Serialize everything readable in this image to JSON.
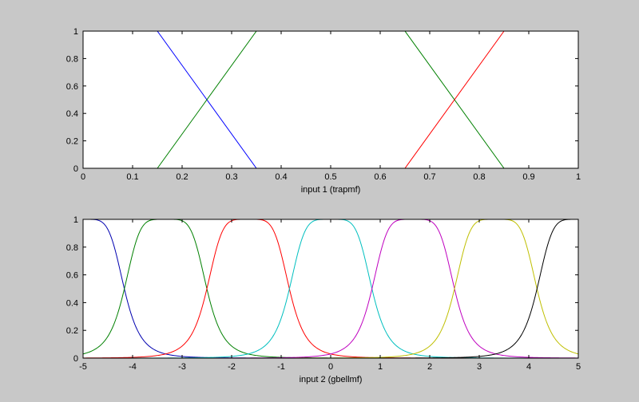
{
  "chart_data": [
    {
      "type": "line",
      "xlabel": "input 1 (trapmf)",
      "ylabel": "",
      "xlim": [
        0,
        1
      ],
      "ylim": [
        0,
        1
      ],
      "xticks": [
        "0",
        "0.1",
        "0.2",
        "0.3",
        "0.4",
        "0.5",
        "0.6",
        "0.7",
        "0.8",
        "0.9",
        "1"
      ],
      "yticks": [
        "0",
        "0.2",
        "0.4",
        "0.6",
        "0.8",
        "1"
      ],
      "grid": false,
      "series": [
        {
          "color": "#0000ff",
          "x": [
            0,
            0.15,
            0.35,
            1
          ],
          "y": [
            1,
            1,
            0,
            0
          ]
        },
        {
          "color": "#008000",
          "x": [
            0,
            0.15,
            0.35,
            0.65,
            0.85,
            1
          ],
          "y": [
            0,
            0,
            1,
            1,
            0,
            0
          ]
        },
        {
          "color": "#ff0000",
          "x": [
            0,
            0.65,
            0.85,
            1
          ],
          "y": [
            0,
            0,
            1,
            1
          ]
        }
      ]
    },
    {
      "type": "line",
      "xlabel": "input 2 (gbellmf)",
      "ylabel": "",
      "xlim": [
        -5,
        5
      ],
      "ylim": [
        0,
        1
      ],
      "xticks": [
        "-5",
        "-4",
        "-3",
        "-2",
        "-1",
        "0",
        "1",
        "2",
        "3",
        "4",
        "5"
      ],
      "yticks": [
        "0",
        "0.2",
        "0.4",
        "0.6",
        "0.8",
        "1"
      ],
      "grid": false,
      "function": "gbellmf",
      "series": [
        {
          "color": "#0000b0",
          "a": 0.833,
          "b": 2.5,
          "c": -5
        },
        {
          "color": "#008000",
          "a": 0.833,
          "b": 2.5,
          "c": -3.333
        },
        {
          "color": "#ff0000",
          "a": 0.833,
          "b": 2.5,
          "c": -1.667
        },
        {
          "color": "#00bfbf",
          "a": 0.833,
          "b": 2.5,
          "c": 0
        },
        {
          "color": "#bf00bf",
          "a": 0.833,
          "b": 2.5,
          "c": 1.667
        },
        {
          "color": "#bfbf00",
          "a": 0.833,
          "b": 2.5,
          "c": 3.333
        },
        {
          "color": "#000000",
          "a": 0.833,
          "b": 2.5,
          "c": 5
        }
      ]
    }
  ]
}
